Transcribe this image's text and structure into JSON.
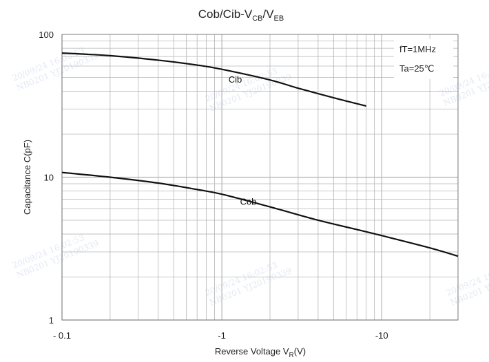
{
  "chart_data": {
    "type": "line",
    "title": "Cob/Cib-V",
    "title_sub1": "CB",
    "title_sep": "/V",
    "title_sub2": "EB",
    "xlabel": "Reverse Voltage  V",
    "xlabel_sub": "R",
    "xlabel_unit": "(V)",
    "ylabel": "Capacitance  C(pF)",
    "x_scale": "log",
    "y_scale": "log",
    "xlim": [
      0.1,
      30
    ],
    "ylim": [
      1,
      100
    ],
    "x_ticks": [
      {
        "value": 0.1,
        "label": "- 0.1"
      },
      {
        "value": 1,
        "label": "-1"
      },
      {
        "value": 10,
        "label": "-10"
      }
    ],
    "y_ticks": [
      {
        "value": 1,
        "label": "1"
      },
      {
        "value": 10,
        "label": "10"
      },
      {
        "value": 100,
        "label": "100"
      }
    ],
    "grid": true,
    "conditions": [
      "fT=1MHz",
      "Ta=25℃"
    ],
    "series": [
      {
        "name": "Cib",
        "label_at": [
          1.1,
          46
        ],
        "points": [
          [
            0.1,
            74
          ],
          [
            0.2,
            71
          ],
          [
            0.4,
            66
          ],
          [
            0.7,
            61
          ],
          [
            1,
            57
          ],
          [
            2,
            48
          ],
          [
            3,
            42
          ],
          [
            5,
            36
          ],
          [
            8,
            31.5
          ]
        ]
      },
      {
        "name": "Cob",
        "label_at": [
          1.3,
          6.4
        ],
        "points": [
          [
            0.1,
            10.8
          ],
          [
            0.2,
            10
          ],
          [
            0.4,
            9.1
          ],
          [
            0.7,
            8.2
          ],
          [
            1,
            7.6
          ],
          [
            2,
            6.2
          ],
          [
            4,
            5.0
          ],
          [
            7,
            4.3
          ],
          [
            10,
            3.9
          ],
          [
            20,
            3.2
          ],
          [
            30,
            2.8
          ]
        ]
      }
    ],
    "line_color": "#111111",
    "grid_color": "#b4b4b4"
  },
  "watermarks": [
    {
      "line1": "20/09/24 16:02:53",
      "line2": "NB0201 YJ20190339"
    }
  ]
}
